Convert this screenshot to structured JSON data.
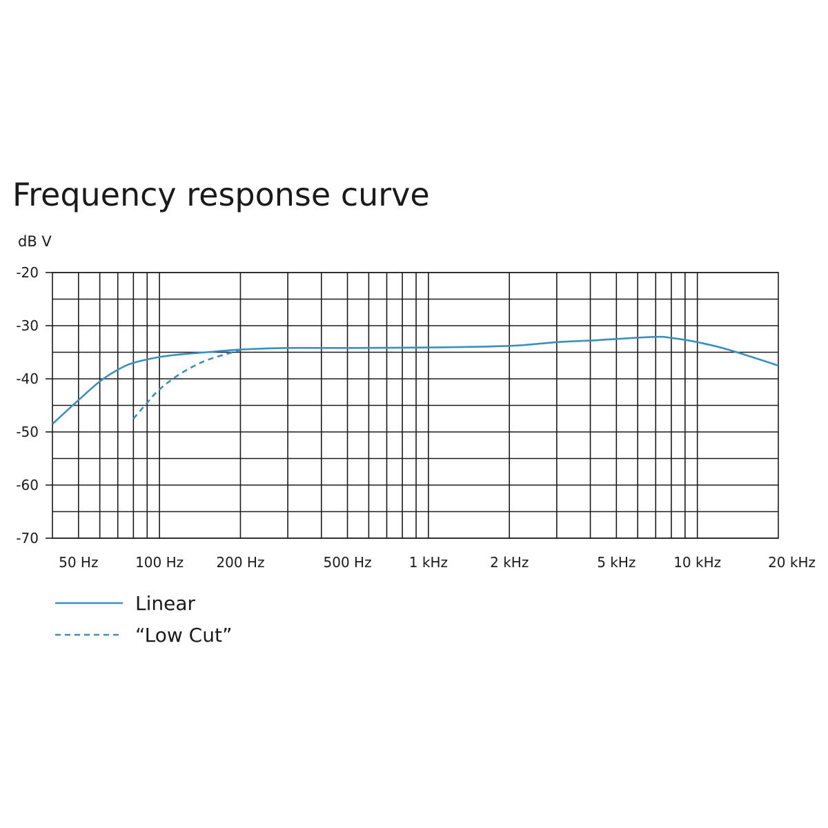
{
  "chart_data": {
    "type": "line",
    "title": "Frequency response curve",
    "ylabel": "dB V",
    "xlabel": "",
    "x_scale": "log",
    "xlim": [
      40,
      20000
    ],
    "ylim": [
      -70,
      -20
    ],
    "grid": true,
    "legend_placement": "bottom-left",
    "yticks": [
      -20,
      -30,
      -40,
      -50,
      -60,
      -70
    ],
    "ytick_labels": [
      "-20",
      "-30",
      "-40",
      "-50",
      "-60",
      "-70"
    ],
    "xticks": [
      50,
      100,
      200,
      500,
      1000,
      2000,
      5000,
      10000,
      20000
    ],
    "xtick_labels": [
      "50 Hz",
      "100 Hz",
      "200 Hz",
      "500 Hz",
      "1 kHz",
      "2 kHz",
      "5 kHz",
      "10 kHz",
      "20 kHz"
    ],
    "x_gridlines": [
      50,
      60,
      70,
      80,
      90,
      100,
      200,
      300,
      400,
      500,
      600,
      700,
      800,
      900,
      1000,
      2000,
      3000,
      4000,
      5000,
      6000,
      7000,
      8000,
      9000,
      10000
    ],
    "y_gridlines": [
      -20,
      -25,
      -30,
      -35,
      -40,
      -45,
      -50,
      -55,
      -60,
      -65,
      -70
    ],
    "series": [
      {
        "name": "Linear",
        "color": "#3a8fbf",
        "dash": "solid",
        "x": [
          40,
          50,
          60,
          70,
          80,
          100,
          120,
          150,
          200,
          300,
          500,
          1000,
          2000,
          3000,
          4000,
          5000,
          7000,
          8000,
          10000,
          13000,
          20000
        ],
        "y": [
          -48.5,
          -44,
          -40.5,
          -38.3,
          -37.0,
          -35.9,
          -35.4,
          -35.0,
          -34.5,
          -34.2,
          -34.2,
          -34.1,
          -33.8,
          -33.1,
          -32.8,
          -32.5,
          -32.1,
          -32.3,
          -33.1,
          -34.5,
          -37.5
        ]
      },
      {
        "name": "“Low Cut”",
        "color": "#3a8fbf",
        "dash": "dashed",
        "x": [
          80,
          90,
          100,
          120,
          150,
          200
        ],
        "y": [
          -47.5,
          -44.5,
          -42.0,
          -39.0,
          -36.5,
          -34.6
        ]
      }
    ]
  }
}
